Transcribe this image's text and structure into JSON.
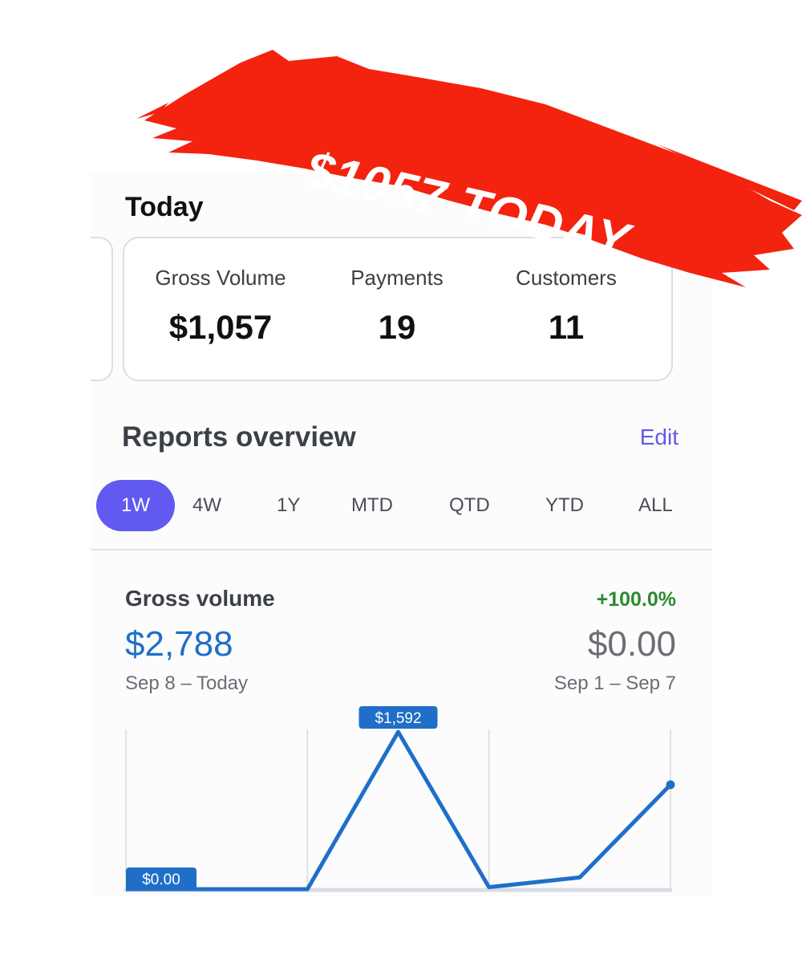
{
  "banner": {
    "text": "$1057 TODAY",
    "color": "#f3230f"
  },
  "today": {
    "title": "Today",
    "stats": [
      {
        "label": "Gross Volume",
        "value": "$1,057"
      },
      {
        "label": "Payments",
        "value": "19"
      },
      {
        "label": "Customers",
        "value": "11"
      }
    ]
  },
  "reports": {
    "title": "Reports overview",
    "edit_label": "Edit",
    "ranges": [
      "1W",
      "4W",
      "1Y",
      "MTD",
      "QTD",
      "YTD",
      "ALL"
    ],
    "active_range": "1W"
  },
  "gross_volume": {
    "title": "Gross volume",
    "value": "$2,788",
    "range": "Sep 8 – Today",
    "change": "+100.0%",
    "previous_value": "$0.00",
    "previous_range": "Sep 1 – Sep 7"
  },
  "chart_data": {
    "type": "line",
    "values": [
      0,
      0,
      0,
      1592,
      20,
      119,
      1057
    ],
    "labels": {
      "start": "$0.00",
      "peak": "$1,592"
    },
    "ylim": [
      0,
      1592
    ],
    "color": "#1f6fc8",
    "grid": "vertical"
  }
}
